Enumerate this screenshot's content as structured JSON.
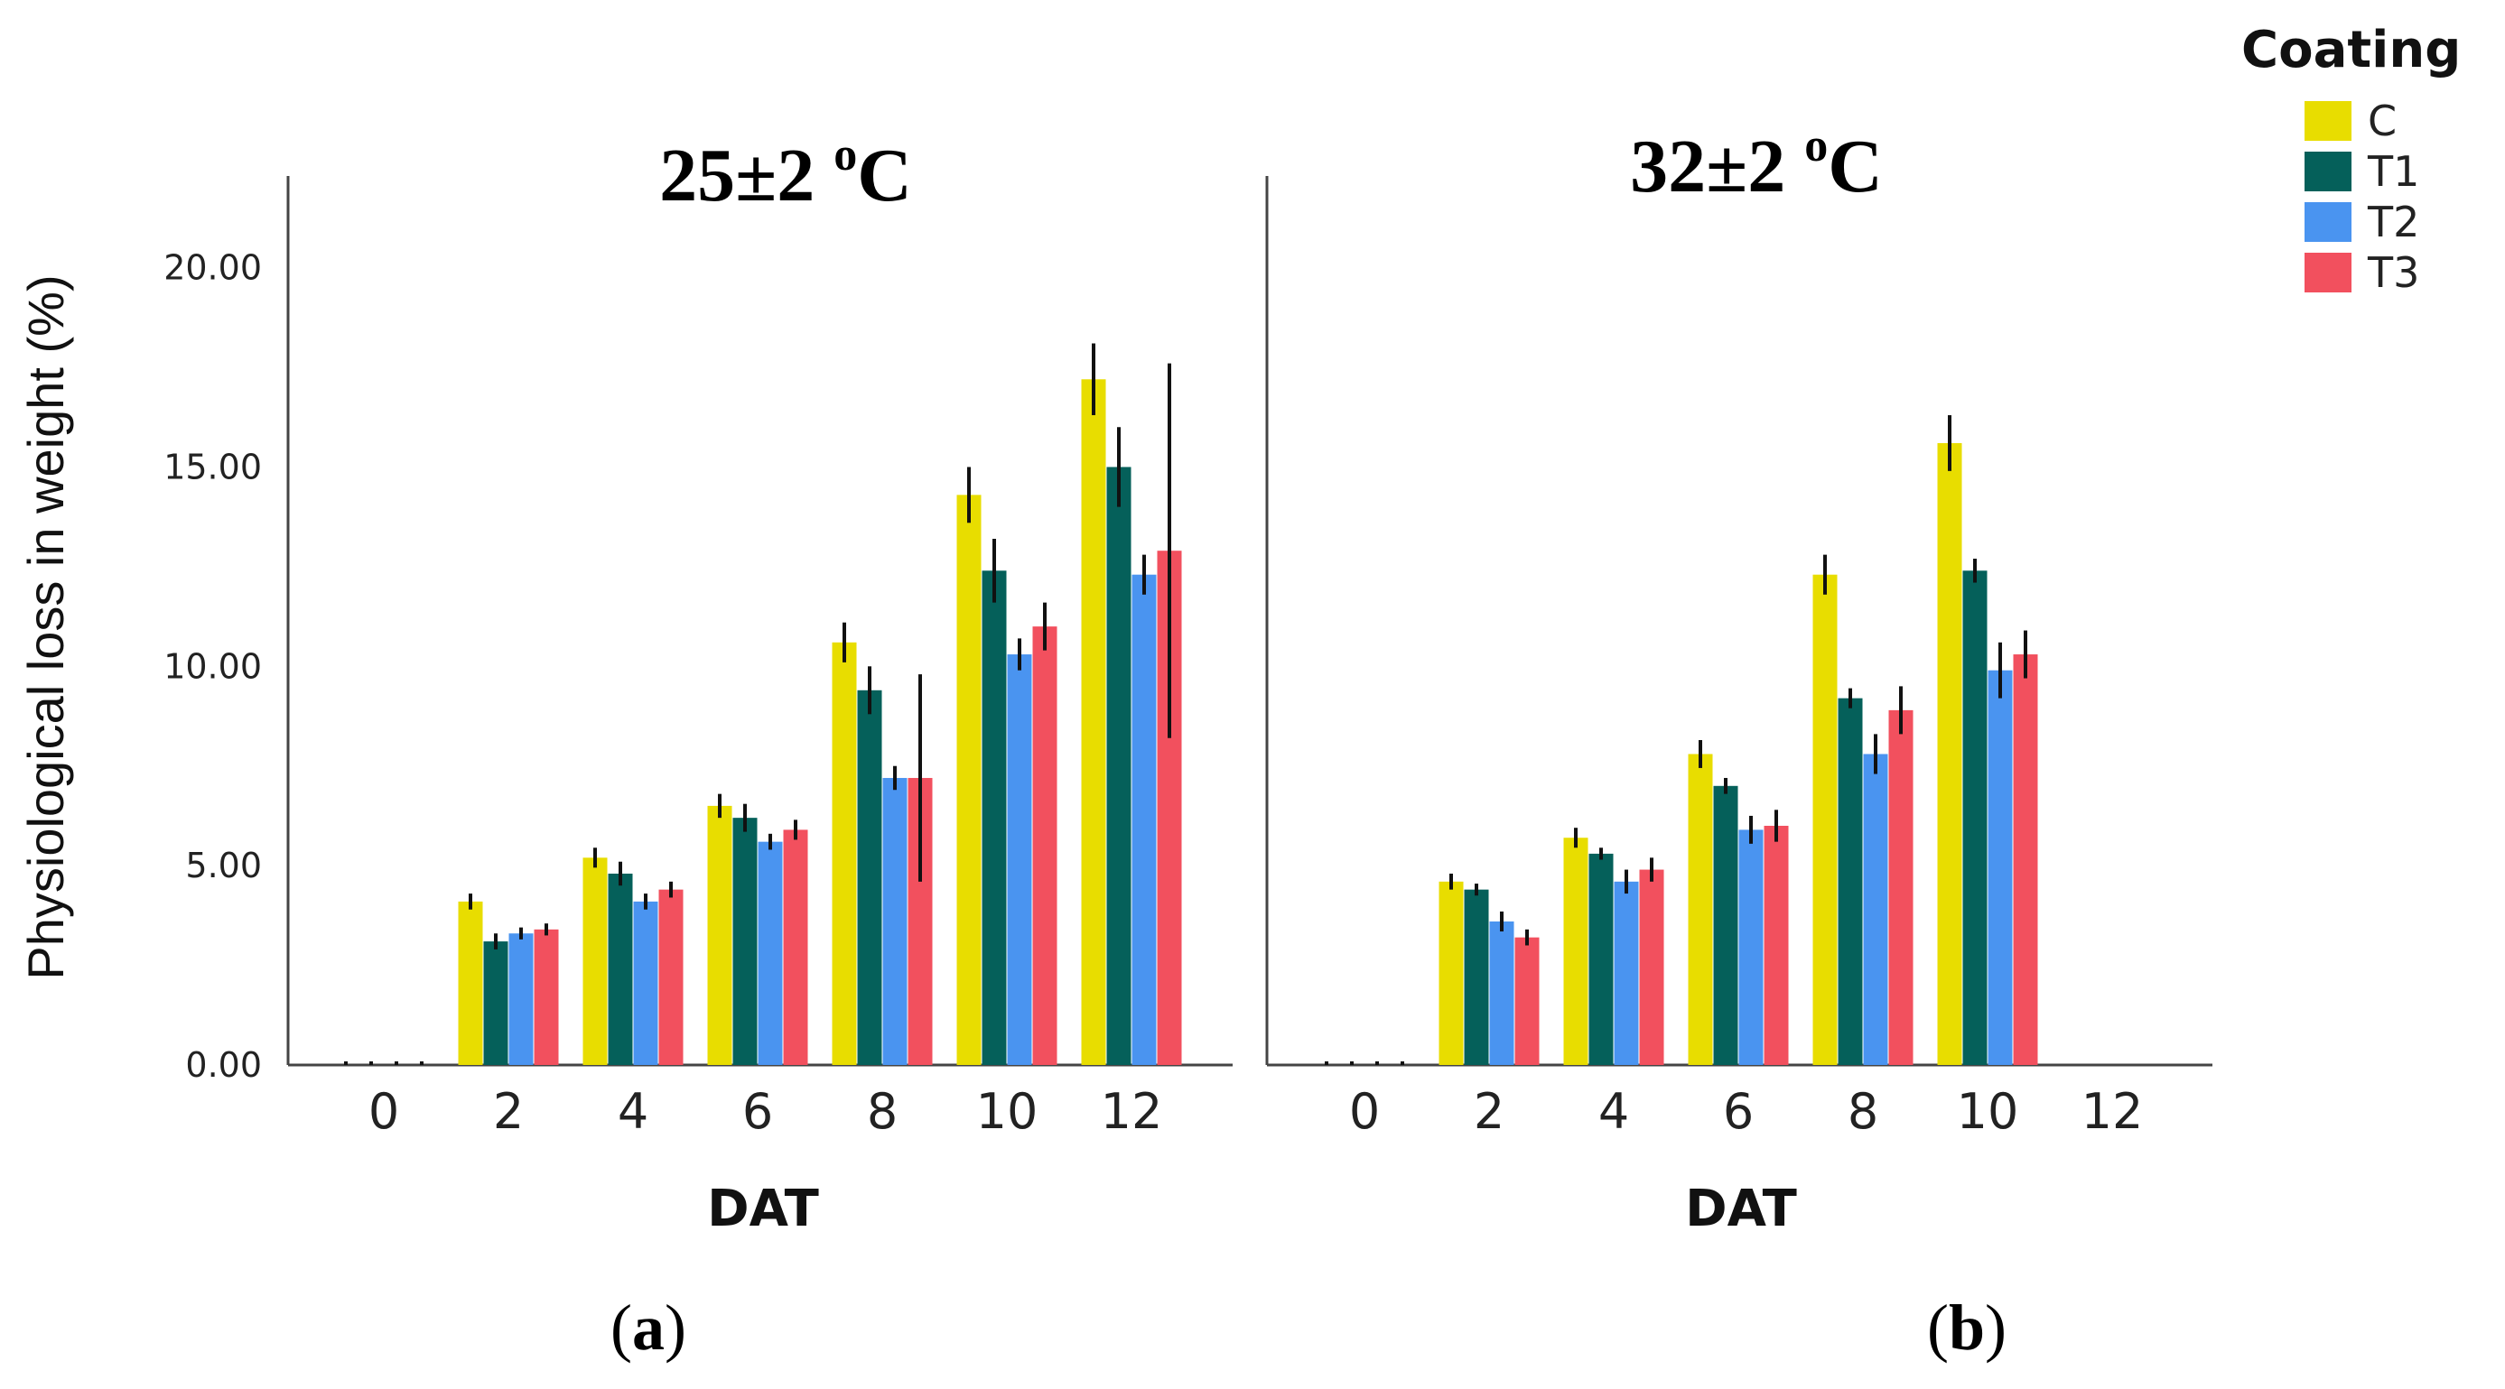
{
  "figure": {
    "ylabel": "Physiological loss in weight (%)",
    "xlabel": "DAT",
    "legend": {
      "title": "Coating",
      "entries": [
        {
          "name": "C",
          "color": "#E8DD00"
        },
        {
          "name": "T1",
          "color": "#05605A"
        },
        {
          "name": "T2",
          "color": "#4A94F0"
        },
        {
          "name": "T3",
          "color": "#F2505E"
        }
      ]
    }
  },
  "chart_data": [
    {
      "type": "bar",
      "panel_tag": "a",
      "title": {
        "prefix": "25±2 ",
        "sup": "o",
        "suffix": "C"
      },
      "xlabel": "DAT",
      "ylabel": "Physiological loss in weight (%)",
      "categories": [
        "0",
        "2",
        "4",
        "6",
        "8",
        "10",
        "12"
      ],
      "ylim": [
        0,
        22.3
      ],
      "yticks": [
        "0.00",
        "5.00",
        "10.00",
        "15.00",
        "20.00"
      ],
      "series": [
        {
          "name": "C",
          "values": [
            0,
            4.1,
            5.2,
            6.5,
            10.6,
            14.3,
            17.2
          ],
          "errors": [
            0,
            0.2,
            0.25,
            0.3,
            0.5,
            0.7,
            0.9
          ]
        },
        {
          "name": "T1",
          "values": [
            0,
            3.1,
            4.8,
            6.2,
            9.4,
            12.4,
            15.0
          ],
          "errors": [
            0,
            0.2,
            0.3,
            0.35,
            0.6,
            0.8,
            1.0
          ]
        },
        {
          "name": "T2",
          "values": [
            0,
            3.3,
            4.1,
            5.6,
            7.2,
            10.3,
            12.3
          ],
          "errors": [
            0,
            0.15,
            0.2,
            0.2,
            0.3,
            0.4,
            0.5
          ]
        },
        {
          "name": "T3",
          "values": [
            0,
            3.4,
            4.4,
            5.9,
            7.2,
            11.0,
            12.9
          ],
          "errors": [
            0,
            0.15,
            0.2,
            0.25,
            2.6,
            0.6,
            4.7
          ]
        }
      ]
    },
    {
      "type": "bar",
      "panel_tag": "b",
      "title": {
        "prefix": "32±2 ",
        "sup": "o",
        "suffix": "C"
      },
      "xlabel": "DAT",
      "ylabel": "Physiological loss in weight (%)",
      "categories": [
        "0",
        "2",
        "4",
        "6",
        "8",
        "10",
        "12"
      ],
      "ylim": [
        0,
        22.3
      ],
      "series": [
        {
          "name": "C",
          "values": [
            0,
            4.6,
            5.7,
            7.8,
            12.3,
            15.6,
            null
          ],
          "errors": [
            0,
            0.2,
            0.25,
            0.35,
            0.5,
            0.7,
            0
          ]
        },
        {
          "name": "T1",
          "values": [
            0,
            4.4,
            5.3,
            7.0,
            9.2,
            12.4,
            null
          ],
          "errors": [
            0,
            0.15,
            0.15,
            0.2,
            0.25,
            0.3,
            0
          ]
        },
        {
          "name": "T2",
          "values": [
            0,
            3.6,
            4.6,
            5.9,
            7.8,
            9.9,
            null
          ],
          "errors": [
            0,
            0.25,
            0.3,
            0.35,
            0.5,
            0.7,
            0
          ]
        },
        {
          "name": "T3",
          "values": [
            0,
            3.2,
            4.9,
            6.0,
            8.9,
            10.3,
            null
          ],
          "errors": [
            0,
            0.2,
            0.3,
            0.4,
            0.6,
            0.6,
            0
          ]
        }
      ]
    }
  ]
}
